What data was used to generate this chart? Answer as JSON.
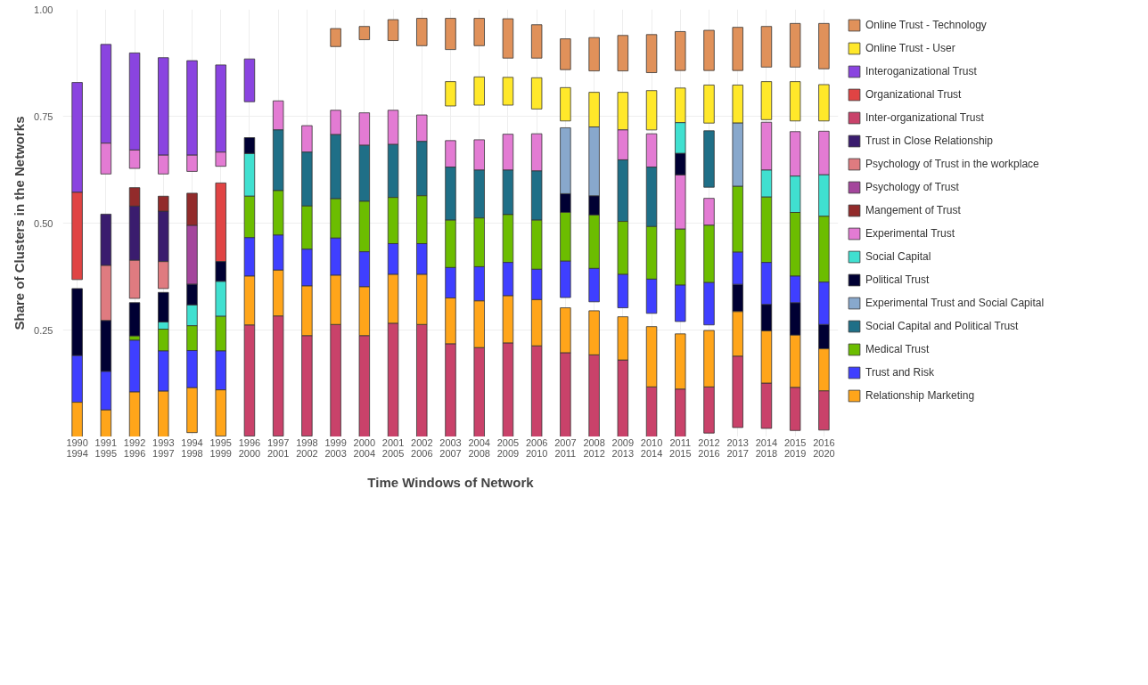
{
  "chart_data": {
    "type": "bar",
    "xlabel": "Time Windows of Network",
    "ylabel": "Share of Clusters in the Networks",
    "categories": [
      "1990\n1994",
      "1991\n1995",
      "1992\n1996",
      "1993\n1997",
      "1994\n1998",
      "1995\n1999",
      "1996\n2000",
      "1997\n2001",
      "1998\n2002",
      "1999\n2003",
      "2000\n2004",
      "2001\n2005",
      "2002\n2006",
      "2003\n2007",
      "2004\n2008",
      "2005\n2009",
      "2006\n2010",
      "2007\n2011",
      "2008\n2012",
      "2009\n2013",
      "2010\n2014",
      "2011\n2015",
      "2012\n2016",
      "2013\n2017",
      "2014\n2018",
      "2015\n2019",
      "2016\n2020"
    ],
    "ylim": [
      0,
      1
    ],
    "yticks": [
      {
        "value": 0.25,
        "label": "0.25"
      },
      {
        "value": 0.5,
        "label": "0.50"
      },
      {
        "value": 0.75,
        "label": "0.75"
      },
      {
        "value": 1,
        "label": "1.00"
      }
    ],
    "grid": true,
    "legend": "right",
    "series": [
      {
        "name": "Online Trust - Technology",
        "color": "#e0915a",
        "base": [
          null,
          null,
          null,
          null,
          null,
          null,
          null,
          null,
          null,
          0.913,
          0.929,
          0.927,
          0.915,
          0.906,
          0.915,
          0.886,
          0.886,
          0.859,
          0.856,
          0.856,
          0.852,
          0.857,
          0.857,
          0.857,
          0.865,
          0.865,
          0.861
        ],
        "values": [
          null,
          null,
          null,
          null,
          null,
          null,
          null,
          null,
          null,
          0.042,
          0.031,
          0.049,
          0.064,
          0.073,
          0.064,
          0.092,
          0.078,
          0.072,
          0.078,
          0.083,
          0.089,
          0.091,
          0.094,
          0.101,
          0.095,
          0.102,
          0.106
        ]
      },
      {
        "name": "Online Trust - User",
        "color": "#ffe82a",
        "base": [
          null,
          null,
          null,
          null,
          null,
          null,
          null,
          null,
          null,
          null,
          null,
          null,
          null,
          0.774,
          0.776,
          0.776,
          0.767,
          0.739,
          0.725,
          0.718,
          0.718,
          0.735,
          0.734,
          0.734,
          0.742,
          0.739,
          0.739
        ],
        "values": [
          null,
          null,
          null,
          null,
          null,
          null,
          null,
          null,
          null,
          null,
          null,
          null,
          null,
          0.057,
          0.066,
          0.065,
          0.073,
          0.078,
          0.081,
          0.088,
          0.092,
          0.081,
          0.089,
          0.089,
          0.089,
          0.092,
          0.085
        ]
      },
      {
        "name": "Interoganizational Trust",
        "color": "#8a44e0",
        "base": [
          0.572,
          0.687,
          0.671,
          0.659,
          0.659,
          0.666,
          0.784,
          null,
          null,
          null,
          null,
          null,
          null,
          null,
          null,
          null,
          null,
          null,
          null,
          null,
          null,
          null,
          null,
          null,
          null,
          null,
          null
        ],
        "values": [
          0.257,
          0.231,
          0.227,
          0.228,
          0.221,
          0.204,
          0.1,
          null,
          null,
          null,
          null,
          null,
          null,
          null,
          null,
          null,
          null,
          null,
          null,
          null,
          null,
          null,
          null,
          null,
          null,
          null,
          null
        ]
      },
      {
        "name": "Organizational Trust",
        "color": "#e04444",
        "base": [
          0.368,
          null,
          null,
          null,
          null,
          0.41,
          null,
          null,
          null,
          null,
          null,
          null,
          null,
          null,
          null,
          null,
          null,
          null,
          null,
          null,
          null,
          null,
          null,
          null,
          null,
          null,
          null
        ],
        "values": [
          0.204,
          null,
          null,
          null,
          null,
          0.184,
          null,
          null,
          null,
          null,
          null,
          null,
          null,
          null,
          null,
          null,
          null,
          null,
          null,
          null,
          null,
          null,
          null,
          null,
          null,
          null,
          null
        ]
      },
      {
        "name": "Inter-organizational Trust",
        "color": "#c9426a",
        "base": [
          null,
          null,
          null,
          null,
          null,
          null,
          0.002,
          0.002,
          0.002,
          0,
          0,
          0,
          0,
          0,
          0,
          0,
          0,
          0,
          0,
          0,
          0,
          0,
          0.009,
          0.022,
          0.02,
          0.015,
          0.016
        ],
        "values": [
          null,
          null,
          null,
          null,
          null,
          null,
          0.26,
          0.281,
          0.235,
          0.263,
          0.237,
          0.266,
          0.263,
          0.218,
          0.209,
          0.22,
          0.213,
          0.197,
          0.192,
          0.18,
          0.117,
          0.112,
          0.108,
          0.167,
          0.106,
          0.101,
          0.092
        ]
      },
      {
        "name": "Trust in Close Relationship",
        "color": "#3a1c6e",
        "base": [
          null,
          0.401,
          0.413,
          0.41,
          null,
          null,
          null,
          null,
          null,
          null,
          null,
          null,
          null,
          null,
          null,
          null,
          null,
          null,
          null,
          null,
          null,
          null,
          null,
          null,
          null,
          null,
          null
        ],
        "values": [
          null,
          0.12,
          0.127,
          0.118,
          null,
          null,
          null,
          null,
          null,
          null,
          null,
          null,
          null,
          null,
          null,
          null,
          null,
          null,
          null,
          null,
          null,
          null,
          null,
          null,
          null,
          null,
          null
        ]
      },
      {
        "name": "Psychology of Trust in the workplace",
        "color": "#df7b80",
        "base": [
          null,
          0.272,
          0.324,
          0.347,
          null,
          null,
          null,
          null,
          null,
          null,
          null,
          null,
          null,
          null,
          null,
          null,
          null,
          null,
          null,
          null,
          null,
          null,
          null,
          null,
          null,
          null,
          null
        ],
        "values": [
          null,
          0.129,
          0.089,
          0.063,
          null,
          null,
          null,
          null,
          null,
          null,
          null,
          null,
          null,
          null,
          null,
          null,
          null,
          null,
          null,
          null,
          null,
          null,
          null,
          null,
          null,
          null,
          null
        ]
      },
      {
        "name": "Psychology of Trust",
        "color": "#a4469c",
        "base": [
          null,
          null,
          null,
          null,
          0.357,
          null,
          null,
          null,
          null,
          null,
          null,
          null,
          null,
          null,
          null,
          null,
          null,
          null,
          null,
          null,
          null,
          null,
          null,
          null,
          null,
          null,
          null
        ],
        "values": [
          null,
          null,
          null,
          null,
          0.138,
          null,
          null,
          null,
          null,
          null,
          null,
          null,
          null,
          null,
          null,
          null,
          null,
          null,
          null,
          null,
          null,
          null,
          null,
          null,
          null,
          null,
          null
        ]
      },
      {
        "name": "Mangement of Trust",
        "color": "#922b2b",
        "base": [
          null,
          null,
          0.54,
          0.528,
          0.495,
          null,
          null,
          null,
          null,
          null,
          null,
          null,
          null,
          null,
          null,
          null,
          null,
          null,
          null,
          null,
          null,
          null,
          null,
          null,
          null,
          null,
          null
        ],
        "values": [
          null,
          null,
          0.043,
          0.035,
          0.075,
          null,
          null,
          null,
          null,
          null,
          null,
          null,
          null,
          null,
          null,
          null,
          null,
          null,
          null,
          null,
          null,
          null,
          null,
          null,
          null,
          null,
          null
        ]
      },
      {
        "name": "Experimental Trust",
        "color": "#e37bd3",
        "base": [
          null,
          0.615,
          0.628,
          0.615,
          0.621,
          0.633,
          null,
          0.718,
          0.666,
          0.707,
          0.682,
          0.684,
          0.691,
          0.631,
          0.624,
          0.624,
          0.622,
          null,
          null,
          0.648,
          0.631,
          0.486,
          0.495,
          null,
          0.624,
          0.61,
          0.613
        ],
        "values": [
          null,
          0.072,
          0.043,
          0.044,
          0.038,
          0.033,
          null,
          0.068,
          0.062,
          0.057,
          0.076,
          0.08,
          0.062,
          0.062,
          0.071,
          0.084,
          0.087,
          null,
          null,
          0.07,
          0.078,
          0.127,
          0.063,
          null,
          0.112,
          0.104,
          0.102
        ]
      },
      {
        "name": "Social Capital",
        "color": "#40e0d0",
        "base": [
          null,
          null,
          null,
          0.252,
          0.26,
          0.282,
          0.563,
          null,
          null,
          null,
          null,
          null,
          null,
          null,
          null,
          null,
          null,
          null,
          null,
          null,
          null,
          0.663,
          null,
          null,
          0.561,
          0.525,
          0.516
        ],
        "values": [
          null,
          null,
          null,
          0.017,
          0.049,
          0.082,
          0.1,
          null,
          null,
          null,
          null,
          null,
          null,
          null,
          null,
          null,
          null,
          null,
          null,
          null,
          null,
          0.072,
          null,
          null,
          0.063,
          0.085,
          0.097
        ]
      },
      {
        "name": "Political Trust",
        "color": "#000033",
        "base": [
          0.19,
          0.153,
          0.236,
          0.269,
          0.309,
          0.364,
          0.663,
          null,
          null,
          null,
          null,
          null,
          null,
          null,
          null,
          null,
          null,
          0.525,
          0.519,
          null,
          null,
          0.613,
          null,
          0.293,
          0.248,
          0.238,
          0.206
        ],
        "values": [
          0.157,
          0.119,
          0.078,
          0.069,
          0.048,
          0.046,
          0.037,
          null,
          null,
          null,
          null,
          null,
          null,
          null,
          null,
          null,
          null,
          0.044,
          0.045,
          null,
          null,
          0.05,
          null,
          0.064,
          0.062,
          0.076,
          0.057
        ]
      },
      {
        "name": "Experimental Trust and Social Capital",
        "color": "#88a8cc",
        "base": [
          null,
          null,
          null,
          null,
          null,
          null,
          null,
          null,
          null,
          null,
          null,
          null,
          null,
          null,
          null,
          null,
          null,
          0.569,
          0.564,
          null,
          null,
          null,
          null,
          0.586,
          null,
          null,
          null
        ],
        "values": [
          null,
          null,
          null,
          null,
          null,
          null,
          null,
          null,
          null,
          null,
          null,
          null,
          null,
          null,
          null,
          null,
          null,
          0.154,
          0.161,
          null,
          null,
          null,
          null,
          0.148,
          null,
          null,
          null
        ]
      },
      {
        "name": "Social Capital and Political Trust",
        "color": "#1f6f87",
        "base": [
          null,
          null,
          null,
          null,
          null,
          null,
          null,
          0.576,
          0.54,
          0.557,
          0.551,
          0.56,
          0.564,
          0.507,
          0.512,
          0.52,
          0.507,
          null,
          null,
          0.504,
          0.492,
          null,
          0.584,
          null,
          null,
          null,
          null
        ],
        "values": [
          null,
          null,
          null,
          null,
          null,
          null,
          null,
          0.142,
          0.126,
          0.15,
          0.131,
          0.124,
          0.127,
          0.124,
          0.112,
          0.104,
          0.115,
          null,
          null,
          0.144,
          0.139,
          null,
          0.132,
          null,
          null,
          null,
          null
        ]
      },
      {
        "name": "Medical Trust",
        "color": "#6cbd00",
        "base": [
          null,
          null,
          0.226,
          0.201,
          0.202,
          0.201,
          0.466,
          0.472,
          0.439,
          0.465,
          0.433,
          0.452,
          0.452,
          0.396,
          0.398,
          0.408,
          0.392,
          0.411,
          0.394,
          0.38,
          0.369,
          0.355,
          0.361,
          0.432,
          0.408,
          0.376,
          0.362
        ],
        "values": [
          null,
          null,
          0.01,
          0.051,
          0.058,
          0.081,
          0.097,
          0.104,
          0.101,
          0.092,
          0.118,
          0.108,
          0.112,
          0.111,
          0.114,
          0.112,
          0.115,
          0.114,
          0.125,
          0.124,
          0.123,
          0.131,
          0.134,
          0.154,
          0.153,
          0.149,
          0.154
        ]
      },
      {
        "name": "Trust and Risk",
        "color": "#3f3fff",
        "base": [
          0.081,
          0.063,
          0.105,
          0.107,
          0.115,
          0.11,
          0.376,
          0.39,
          0.353,
          0.378,
          0.351,
          0.38,
          0.38,
          0.325,
          0.318,
          0.33,
          0.321,
          0.326,
          0.316,
          0.302,
          0.289,
          0.27,
          0.262,
          0.357,
          0.31,
          0.314,
          0.263
        ],
        "values": [
          0.109,
          0.09,
          0.121,
          0.094,
          0.087,
          0.091,
          0.09,
          0.082,
          0.086,
          0.087,
          0.082,
          0.072,
          0.072,
          0.071,
          0.08,
          0.078,
          0.071,
          0.085,
          0.078,
          0.078,
          0.08,
          0.085,
          0.099,
          0.075,
          0.098,
          0.062,
          0.099
        ]
      },
      {
        "name": "Relationship Marketing",
        "color": "#ffa51a",
        "base": [
          0,
          0,
          0,
          0,
          0.01,
          0.002,
          0.262,
          0.283,
          0.237,
          0.263,
          0.237,
          0.266,
          0.263,
          0.218,
          0.209,
          0.22,
          0.213,
          0.197,
          0.192,
          0.18,
          0.117,
          0.112,
          0.117,
          0.189,
          0.126,
          0.116,
          0.108
        ],
        "values": [
          0.081,
          0.063,
          0.105,
          0.107,
          0.105,
          0.108,
          0.114,
          0.107,
          0.116,
          0.115,
          0.114,
          0.114,
          0.117,
          0.107,
          0.109,
          0.11,
          0.108,
          0.105,
          0.103,
          0.101,
          0.141,
          0.129,
          0.132,
          0.104,
          0.122,
          0.122,
          0.098
        ]
      }
    ]
  }
}
